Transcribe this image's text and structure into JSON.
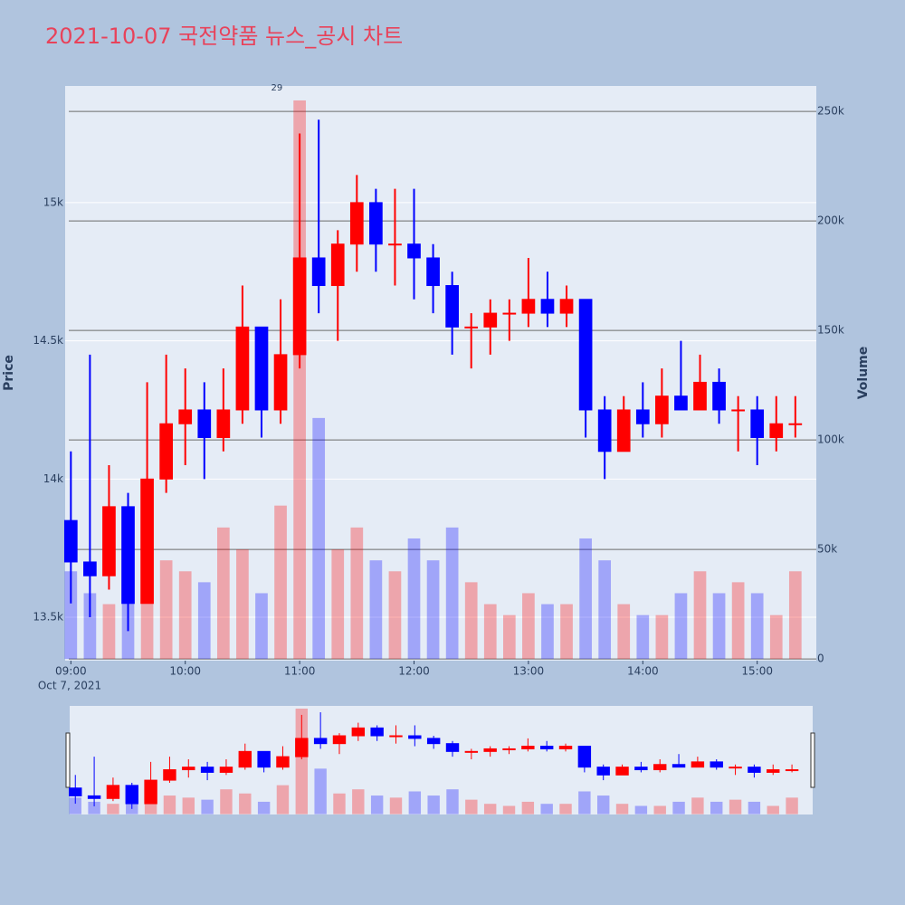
{
  "chart_data": {
    "type": "candlestick",
    "title": "2021-10-07 국전약품 뉴스_공시 차트",
    "y_label": "Price",
    "y2_label": "Volume",
    "date_label": "Oct 7, 2021",
    "annotation": {
      "x": "2021-10-07 10:48",
      "text": "29"
    },
    "x": [
      "2021-10-07 09:00",
      "2021-10-07 09:10",
      "2021-10-07 09:20",
      "2021-10-07 09:30",
      "2021-10-07 09:40",
      "2021-10-07 09:50",
      "2021-10-07 10:00",
      "2021-10-07 10:10",
      "2021-10-07 10:20",
      "2021-10-07 10:30",
      "2021-10-07 10:40",
      "2021-10-07 10:50",
      "2021-10-07 11:00",
      "2021-10-07 11:10",
      "2021-10-07 11:20",
      "2021-10-07 11:30",
      "2021-10-07 11:40",
      "2021-10-07 11:50",
      "2021-10-07 12:00",
      "2021-10-07 12:10",
      "2021-10-07 12:20",
      "2021-10-07 12:30",
      "2021-10-07 12:40",
      "2021-10-07 12:50",
      "2021-10-07 13:00",
      "2021-10-07 13:10",
      "2021-10-07 13:20",
      "2021-10-07 13:30",
      "2021-10-07 13:40",
      "2021-10-07 13:50",
      "2021-10-07 14:00",
      "2021-10-07 14:10",
      "2021-10-07 14:20",
      "2021-10-07 14:30",
      "2021-10-07 14:40",
      "2021-10-07 14:50",
      "2021-10-07 15:00",
      "2021-10-07 15:10",
      "2021-10-07 15:20"
    ],
    "open": [
      13850,
      13700,
      13650,
      13900,
      13550,
      14000,
      14200,
      14250,
      14150,
      14250,
      14550,
      14250,
      14450,
      14800,
      14700,
      14850,
      15000,
      14850,
      14850,
      14800,
      14700,
      14550,
      14550,
      14600,
      14600,
      14650,
      14600,
      14650,
      14250,
      14100,
      14250,
      14200,
      14300,
      14250,
      14350,
      14250,
      14250,
      14150,
      14200
    ],
    "high": [
      14100,
      14450,
      14050,
      13950,
      14350,
      14450,
      14400,
      14350,
      14400,
      14700,
      14550,
      14650,
      15250,
      15300,
      14900,
      15100,
      15050,
      15050,
      15050,
      14850,
      14750,
      14600,
      14650,
      14650,
      14800,
      14750,
      14700,
      14650,
      14300,
      14300,
      14350,
      14400,
      14500,
      14450,
      14400,
      14300,
      14300,
      14300,
      14300
    ],
    "low": [
      13550,
      13500,
      13600,
      13450,
      13550,
      13950,
      14050,
      14000,
      14100,
      14200,
      14150,
      14200,
      14400,
      14600,
      14500,
      14750,
      14750,
      14700,
      14650,
      14600,
      14450,
      14400,
      14450,
      14500,
      14550,
      14550,
      14550,
      14150,
      14000,
      14100,
      14150,
      14150,
      14250,
      14250,
      14200,
      14100,
      14050,
      14100,
      14150
    ],
    "close": [
      13700,
      13650,
      13900,
      13550,
      14000,
      14200,
      14250,
      14150,
      14250,
      14550,
      14250,
      14450,
      14800,
      14700,
      14850,
      15000,
      14850,
      14850,
      14800,
      14700,
      14550,
      14550,
      14600,
      14600,
      14650,
      14600,
      14650,
      14250,
      14100,
      14250,
      14200,
      14300,
      14250,
      14350,
      14250,
      14250,
      14150,
      14200,
      14200
    ],
    "volume": [
      40000,
      30000,
      25000,
      35000,
      30000,
      45000,
      40000,
      35000,
      60000,
      50000,
      30000,
      70000,
      255000,
      110000,
      50000,
      60000,
      45000,
      40000,
      55000,
      45000,
      60000,
      35000,
      25000,
      20000,
      30000,
      25000,
      25000,
      55000,
      45000,
      25000,
      20000,
      20000,
      30000,
      40000,
      30000,
      35000,
      30000,
      20000,
      40000
    ],
    "increasing_color": "#ff0000",
    "decreasing_color": "#0000ff",
    "xlim": [
      "2021-10-07 08:57",
      "2021-10-07 15:31"
    ],
    "xticks": [
      {
        "value": "2021-10-07 09:00",
        "label": "09:00"
      },
      {
        "value": "2021-10-07 10:00",
        "label": "10:00"
      },
      {
        "value": "2021-10-07 11:00",
        "label": "11:00"
      },
      {
        "value": "2021-10-07 12:00",
        "label": "12:00"
      },
      {
        "value": "2021-10-07 13:00",
        "label": "13:00"
      },
      {
        "value": "2021-10-07 14:00",
        "label": "14:00"
      },
      {
        "value": "2021-10-07 15:00",
        "label": "15:00"
      }
    ],
    "ylim": [
      13343,
      15422
    ],
    "yticks": [
      {
        "value": 13500,
        "label": "13.5k"
      },
      {
        "value": 14000,
        "label": "14k"
      },
      {
        "value": 14500,
        "label": "14.5k"
      },
      {
        "value": 15000,
        "label": "15k"
      }
    ],
    "y2lim": [
      -800,
      261600
    ],
    "y2ticks": [
      0,
      {
        "value": 50000,
        "label": "50k"
      },
      {
        "value": 100000,
        "label": "100k"
      },
      {
        "value": 150000,
        "label": "150k"
      },
      {
        "value": 200000,
        "label": "200k"
      },
      {
        "value": 250000,
        "label": "250k"
      }
    ],
    "grid": true,
    "range_slider": true
  }
}
